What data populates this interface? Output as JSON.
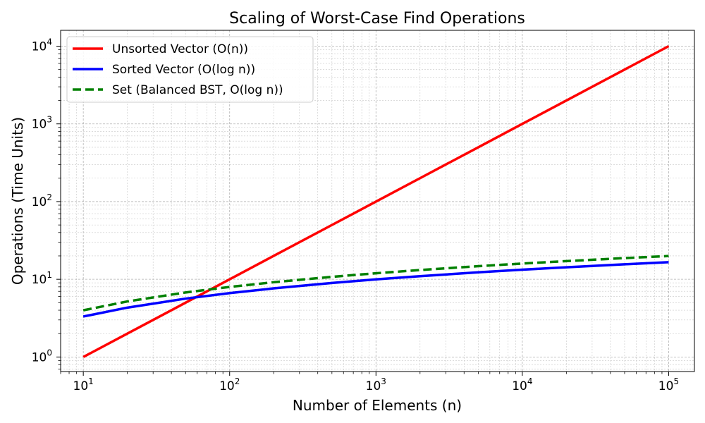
{
  "chart_data": {
    "type": "line",
    "title": "Scaling of Worst-Case Find Operations",
    "xlabel": "Number of Elements (n)",
    "ylabel": "Operations (Time Units)",
    "xscale": "log",
    "yscale": "log",
    "xlim": [
      7,
      150000
    ],
    "ylim": [
      0.65,
      16000
    ],
    "grid": true,
    "legend": "top-left",
    "x_ticks": [
      {
        "base": "10",
        "exp": "1",
        "value": 10
      },
      {
        "base": "10",
        "exp": "2",
        "value": 100
      },
      {
        "base": "10",
        "exp": "3",
        "value": 1000
      },
      {
        "base": "10",
        "exp": "4",
        "value": 10000
      },
      {
        "base": "10",
        "exp": "5",
        "value": 100000
      }
    ],
    "y_ticks": [
      {
        "base": "10",
        "exp": "0",
        "value": 1
      },
      {
        "base": "10",
        "exp": "1",
        "value": 10
      },
      {
        "base": "10",
        "exp": "2",
        "value": 100
      },
      {
        "base": "10",
        "exp": "3",
        "value": 1000
      },
      {
        "base": "10",
        "exp": "4",
        "value": 10000
      }
    ],
    "x": [
      10,
      20,
      50,
      100,
      200,
      500,
      1000,
      2000,
      5000,
      10000,
      20000,
      50000,
      100000
    ],
    "series": [
      {
        "name": "Unsorted Vector (O(n))",
        "color": "#ff0000",
        "style": "solid",
        "values": [
          1,
          2,
          5,
          10,
          20,
          50,
          100,
          200,
          500,
          1000,
          2000,
          5000,
          10000
        ]
      },
      {
        "name": "Sorted Vector (O(log n))",
        "color": "#0000ff",
        "style": "solid",
        "values": [
          3.32,
          4.32,
          5.64,
          6.64,
          7.64,
          8.97,
          9.97,
          10.97,
          12.29,
          13.29,
          14.29,
          15.61,
          16.61
        ]
      },
      {
        "name": "Set (Balanced BST, O(log n))",
        "color": "#008000",
        "style": "dashed",
        "values": [
          3.99,
          5.19,
          6.77,
          7.97,
          9.17,
          10.76,
          11.96,
          13.16,
          14.75,
          15.95,
          17.15,
          18.74,
          19.93
        ]
      }
    ]
  }
}
